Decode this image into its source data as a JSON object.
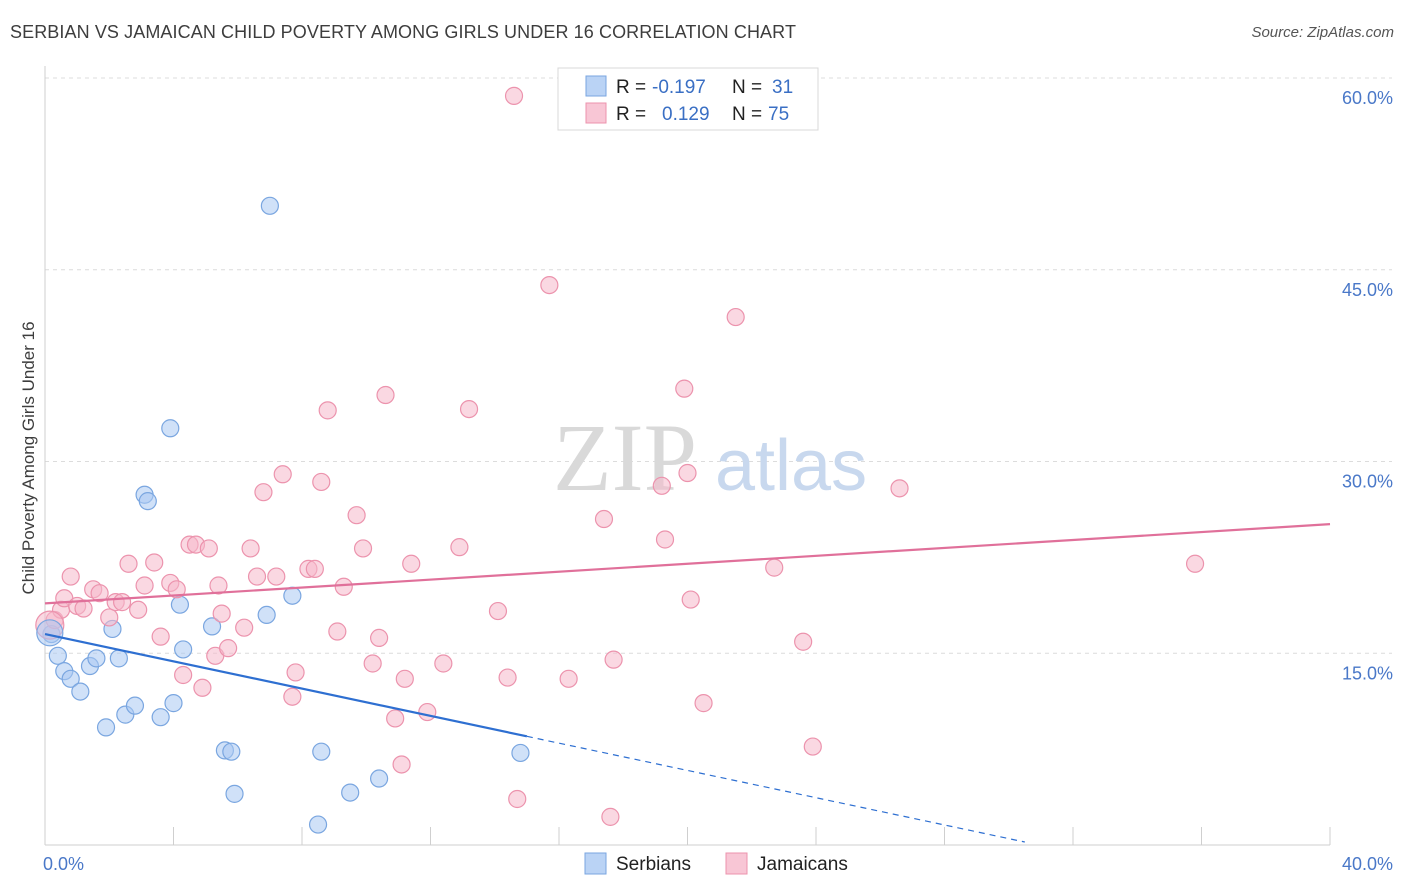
{
  "title": "SERBIAN VS JAMAICAN CHILD POVERTY AMONG GIRLS UNDER 16 CORRELATION CHART",
  "source": "Source: ZipAtlas.com",
  "watermark": {
    "part1": "ZIP",
    "part2": "atlas"
  },
  "legend": {
    "rows": [
      {
        "r_label": "R =",
        "r_value": "-0.197",
        "n_label": "N =",
        "n_value": "31",
        "color": "#a9c8f2"
      },
      {
        "r_label": "R =",
        "r_value": "0.129",
        "n_label": "N =",
        "n_value": "75",
        "color": "#f6b8cb"
      }
    ]
  },
  "bottom_legend": [
    {
      "label": "Serbians",
      "color": "#a9c8f2"
    },
    {
      "label": "Jamaicans",
      "color": "#f6b8cb"
    }
  ],
  "chart_data": {
    "type": "scatter",
    "title": "SERBIAN VS JAMAICAN CHILD POVERTY AMONG GIRLS UNDER 16 CORRELATION CHART",
    "xlabel": "",
    "ylabel": "Child Poverty Among Girls Under 16",
    "xlim": [
      0,
      40
    ],
    "ylim": [
      0,
      60
    ],
    "x_tick_labels": [
      {
        "value": 0,
        "label": "0.0%"
      },
      {
        "value": 40,
        "label": "40.0%"
      }
    ],
    "y_tick_labels": [
      {
        "value": 15,
        "label": "15.0%"
      },
      {
        "value": 30,
        "label": "30.0%"
      },
      {
        "value": 45,
        "label": "45.0%"
      },
      {
        "value": 60,
        "label": "60.0%"
      }
    ],
    "grid": true,
    "legend_position": "top-center",
    "series": [
      {
        "name": "Serbians",
        "color": "#a9c8f2",
        "stroke": "#7aa6e0",
        "trend_color": "#2e6fd1",
        "trend": {
          "x0": 0,
          "y0": 16.5,
          "x1": 15,
          "y1": 8.5,
          "dash_to_x": 30.5
        },
        "points": [
          [
            0.2,
            16.5
          ],
          [
            0.4,
            14.8
          ],
          [
            0.6,
            13.6
          ],
          [
            0.8,
            13.0
          ],
          [
            1.1,
            12.0
          ],
          [
            1.4,
            14.0
          ],
          [
            1.6,
            14.6
          ],
          [
            1.9,
            9.2
          ],
          [
            2.1,
            16.9
          ],
          [
            2.3,
            14.6
          ],
          [
            2.5,
            10.2
          ],
          [
            2.8,
            10.9
          ],
          [
            3.1,
            27.4
          ],
          [
            3.2,
            26.9
          ],
          [
            3.6,
            10.0
          ],
          [
            3.9,
            32.6
          ],
          [
            4.0,
            11.1
          ],
          [
            4.2,
            18.8
          ],
          [
            4.3,
            15.3
          ],
          [
            5.2,
            17.1
          ],
          [
            5.6,
            7.4
          ],
          [
            5.8,
            7.3
          ],
          [
            5.9,
            4.0
          ],
          [
            6.9,
            18.0
          ],
          [
            7.0,
            50.0
          ],
          [
            7.7,
            19.5
          ],
          [
            8.5,
            1.6
          ],
          [
            8.6,
            7.3
          ],
          [
            9.5,
            4.1
          ],
          [
            10.4,
            5.2
          ],
          [
            14.8,
            7.2
          ]
        ]
      },
      {
        "name": "Jamaicans",
        "color": "#f6b8cb",
        "stroke": "#ec93ad",
        "trend_color": "#e0709a",
        "trend": {
          "x0": 0,
          "y0": 18.9,
          "x1": 40,
          "y1": 25.1
        },
        "points": [
          [
            0.3,
            17.6
          ],
          [
            0.5,
            18.4
          ],
          [
            0.6,
            19.3
          ],
          [
            0.8,
            21.0
          ],
          [
            1.0,
            18.7
          ],
          [
            1.2,
            18.5
          ],
          [
            1.5,
            20.0
          ],
          [
            1.7,
            19.7
          ],
          [
            2.0,
            17.8
          ],
          [
            2.2,
            19.0
          ],
          [
            2.4,
            19.0
          ],
          [
            2.6,
            22.0
          ],
          [
            2.9,
            18.4
          ],
          [
            3.1,
            20.3
          ],
          [
            3.4,
            22.1
          ],
          [
            3.6,
            16.3
          ],
          [
            3.9,
            20.5
          ],
          [
            4.1,
            20.0
          ],
          [
            4.3,
            13.3
          ],
          [
            4.5,
            23.5
          ],
          [
            4.7,
            23.5
          ],
          [
            4.9,
            12.3
          ],
          [
            5.1,
            23.2
          ],
          [
            5.3,
            14.8
          ],
          [
            5.4,
            20.3
          ],
          [
            5.5,
            18.1
          ],
          [
            5.7,
            15.4
          ],
          [
            6.2,
            17.0
          ],
          [
            6.4,
            23.2
          ],
          [
            6.6,
            21.0
          ],
          [
            6.8,
            27.6
          ],
          [
            7.2,
            21.0
          ],
          [
            7.4,
            29.0
          ],
          [
            7.7,
            11.6
          ],
          [
            7.8,
            13.5
          ],
          [
            8.2,
            21.6
          ],
          [
            8.4,
            21.6
          ],
          [
            8.6,
            28.4
          ],
          [
            8.8,
            34.0
          ],
          [
            9.1,
            16.7
          ],
          [
            9.3,
            20.2
          ],
          [
            9.7,
            25.8
          ],
          [
            9.9,
            23.2
          ],
          [
            10.2,
            14.2
          ],
          [
            10.4,
            16.2
          ],
          [
            10.6,
            35.2
          ],
          [
            10.9,
            9.9
          ],
          [
            11.1,
            6.3
          ],
          [
            11.2,
            13.0
          ],
          [
            11.4,
            22.0
          ],
          [
            11.9,
            10.4
          ],
          [
            12.4,
            14.2
          ],
          [
            12.9,
            23.3
          ],
          [
            13.2,
            34.1
          ],
          [
            14.1,
            18.3
          ],
          [
            14.4,
            13.1
          ],
          [
            14.6,
            58.6
          ],
          [
            14.7,
            3.6
          ],
          [
            15.7,
            43.8
          ],
          [
            16.3,
            13.0
          ],
          [
            17.4,
            25.5
          ],
          [
            17.6,
            2.2
          ],
          [
            17.7,
            14.5
          ],
          [
            19.2,
            28.1
          ],
          [
            19.3,
            23.9
          ],
          [
            19.9,
            35.7
          ],
          [
            20.0,
            29.1
          ],
          [
            20.1,
            19.2
          ],
          [
            20.5,
            11.1
          ],
          [
            21.5,
            41.3
          ],
          [
            22.7,
            21.7
          ],
          [
            23.6,
            15.9
          ],
          [
            23.9,
            7.7
          ],
          [
            26.6,
            27.9
          ],
          [
            35.8,
            22.0
          ]
        ]
      }
    ]
  }
}
